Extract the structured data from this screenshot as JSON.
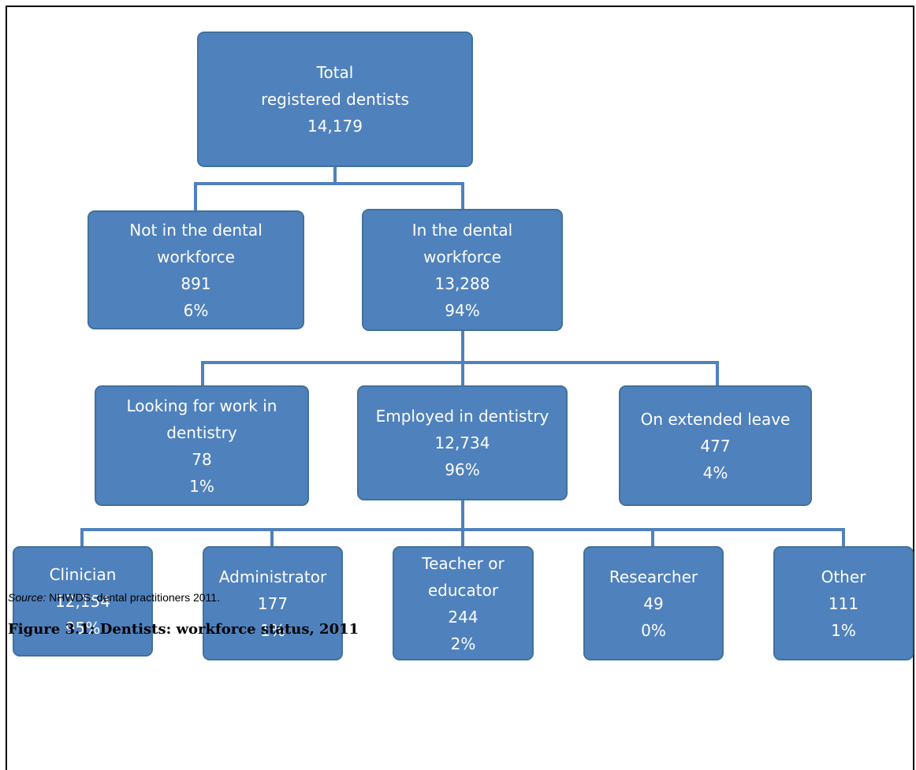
{
  "nodes": [
    {
      "label": [
        "Total",
        "registered dentists"
      ],
      "count": "14,179"
    },
    {
      "label": [
        "Not in the dental",
        "workforce"
      ],
      "count": "891",
      "percent": "6%"
    },
    {
      "label": [
        "In the dental",
        "workforce"
      ],
      "count": "13,288",
      "percent": "94%"
    },
    {
      "label": [
        "Looking for work in",
        "dentistry"
      ],
      "count": "78",
      "percent": "1%"
    },
    {
      "label": [
        "Employed in dentistry"
      ],
      "count": "12,734",
      "percent": "96%"
    },
    {
      "label": [
        "On extended leave"
      ],
      "count": "477",
      "percent": "4%"
    },
    {
      "label": [
        "Clinician"
      ],
      "count": "12,154",
      "percent": "95%"
    },
    {
      "label": [
        "Administrator"
      ],
      "count": "177",
      "percent": "1%"
    },
    {
      "label": [
        "Teacher or",
        "educator"
      ],
      "count": "244",
      "percent": "2%"
    },
    {
      "label": [
        "Researcher"
      ],
      "count": "49",
      "percent": "0%"
    },
    {
      "label": [
        "Other"
      ],
      "count": "111",
      "percent": "1%"
    }
  ],
  "source": {
    "prefix": "Source:",
    "text": "NHWDS: dental practitioners 2011."
  },
  "caption": "Figure 3.1: Dentists: workforce status, 2011"
}
